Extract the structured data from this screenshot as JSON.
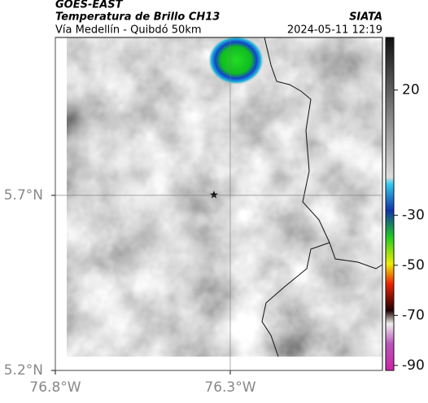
{
  "header": {
    "title": "GOES-EAST",
    "subtitle": "Temperatura de Brillo CH13",
    "source": "SIATA",
    "location": "Vía Medellín - Quibdó 50km",
    "datetime": "2024-05-11 12:19"
  },
  "map": {
    "xlim": [
      -76.8,
      -75.865
    ],
    "ylim": [
      5.2,
      6.151
    ],
    "xticks": [
      {
        "value": -76.8,
        "label": "76.8°W"
      },
      {
        "value": -76.3,
        "label": "76.3°W"
      }
    ],
    "yticks": [
      {
        "value": 5.7,
        "label": "5.7°N"
      },
      {
        "value": 5.2,
        "label": "5.2°N"
      }
    ]
  },
  "colorbar": {
    "lim": [
      -92,
      41
    ],
    "ticks": [
      20,
      -30,
      -50,
      -70,
      -90
    ]
  }
}
